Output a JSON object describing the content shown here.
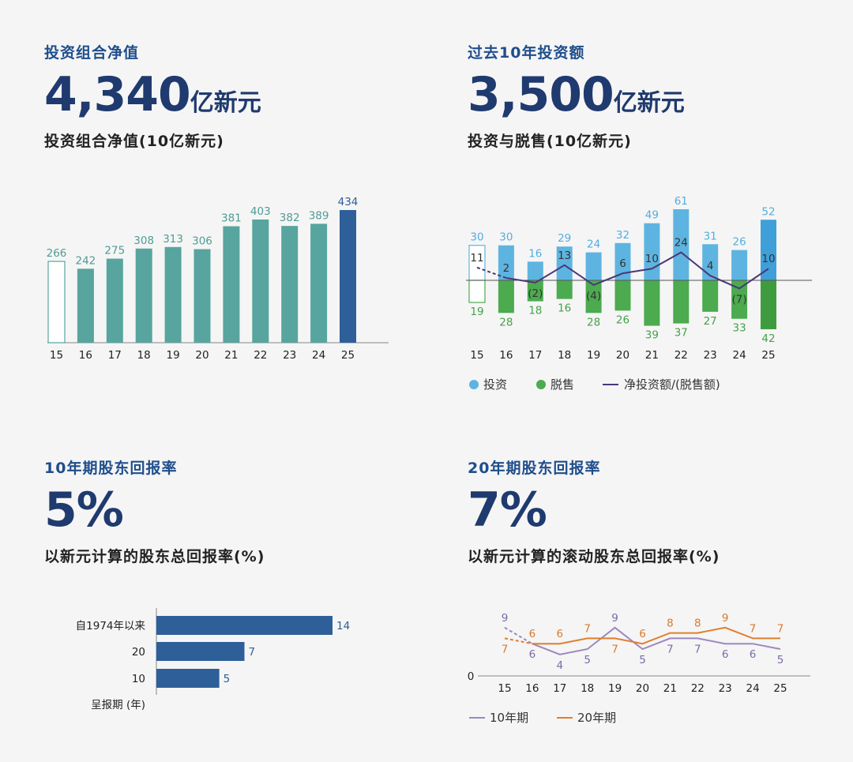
{
  "colors": {
    "heading_blue": "#1f4e8c",
    "value_navy": "#1f3a6e",
    "teal": "#57a59e",
    "teal_label": "#4f9c95",
    "dark_blue": "#2e5f99",
    "light_blue": "#5eb4e0",
    "light_blue_label": "#52aee0",
    "green": "#4caa4f",
    "green_label": "#45a14a",
    "purple": "#4a3878",
    "lavender": "#9c88c0",
    "orange": "#e07f2f",
    "axis": "#888888"
  },
  "panels": {
    "portfolio": {
      "label": "投资组合净值",
      "value": "4,340",
      "unit": "亿新元",
      "chart_title": "投资组合净值(10亿新元)"
    },
    "investment": {
      "label": "过去10年投资额",
      "value": "3,500",
      "unit": "亿新元",
      "chart_title": "投资与脱售(10亿新元)"
    },
    "tsr10": {
      "label": "10年期股东回报率",
      "value": "5%",
      "chart_title": "以新元计算的股东总回报率(%)"
    },
    "tsr20": {
      "label": "20年期股东回报率",
      "value": "7%",
      "chart_title": "以新元计算的滚动股东总回报率(%)"
    }
  },
  "chart_data": [
    {
      "id": "portfolio-chart",
      "type": "bar",
      "title": "投资组合净值(10亿新元)",
      "categories": [
        "15",
        "16",
        "17",
        "18",
        "19",
        "20",
        "21",
        "22",
        "23",
        "24",
        "25"
      ],
      "values": [
        266,
        242,
        275,
        308,
        313,
        306,
        381,
        403,
        382,
        389,
        434
      ],
      "value_labels": [
        "266",
        "242",
        "275",
        "308",
        "313",
        "306",
        "381",
        "403",
        "382",
        "389",
        "434"
      ],
      "ylim": [
        0,
        434
      ],
      "highlight_last": true,
      "outline_first": true
    },
    {
      "id": "investment-chart",
      "type": "bar",
      "title": "投资与脱售(10亿新元)",
      "categories": [
        "15",
        "16",
        "17",
        "18",
        "19",
        "20",
        "21",
        "22",
        "23",
        "24",
        "25"
      ],
      "series": [
        {
          "name": "投资",
          "values": [
            30,
            30,
            16,
            29,
            24,
            32,
            49,
            61,
            31,
            26,
            52
          ],
          "labels": [
            "30",
            "30",
            "16",
            "29",
            "24",
            "32",
            "49",
            "61",
            "31",
            "26",
            "52"
          ]
        },
        {
          "name": "脱售",
          "values": [
            19,
            28,
            18,
            16,
            28,
            26,
            39,
            37,
            27,
            33,
            42
          ],
          "labels": [
            "19",
            "28",
            "18",
            "16",
            "28",
            "26",
            "39",
            "37",
            "27",
            "33",
            "42"
          ]
        },
        {
          "name": "净投资额/(脱售额)",
          "type": "line",
          "values": [
            11,
            2,
            -2,
            13,
            -4,
            6,
            10,
            24,
            4,
            -7,
            10
          ],
          "labels": [
            "11",
            "2",
            "(2)",
            "13",
            "(4)",
            "6",
            "10",
            "24",
            "4",
            "(7)",
            "10"
          ]
        }
      ],
      "legend": [
        "投资",
        "脱售",
        "净投资额/(脱售额)"
      ],
      "legend_position": "bottom",
      "ylim": [
        -42,
        61
      ]
    },
    {
      "id": "tsr10-chart",
      "type": "bar",
      "orientation": "horizontal",
      "title": "以新元计算的股东总回报率(%)",
      "categories": [
        "自1974年以来",
        "20",
        "10"
      ],
      "values": [
        14,
        7,
        5
      ],
      "value_labels": [
        "14",
        "7",
        "5"
      ],
      "ylabel": "呈报期 (年)",
      "xlim": [
        0,
        14
      ]
    },
    {
      "id": "tsr20-chart",
      "type": "line",
      "title": "以新元计算的滚动股东总回报率(%)",
      "categories": [
        "15",
        "16",
        "17",
        "18",
        "19",
        "20",
        "21",
        "22",
        "23",
        "24",
        "25"
      ],
      "series": [
        {
          "name": "10年期",
          "values": [
            9,
            6,
            4,
            5,
            9,
            5,
            7,
            7,
            6,
            6,
            5
          ],
          "labels": [
            "9",
            "6",
            "4",
            "5",
            "9",
            "5",
            "7",
            "7",
            "6",
            "6",
            "5"
          ]
        },
        {
          "name": "20年期",
          "values": [
            7,
            6,
            6,
            7,
            7,
            6,
            8,
            8,
            9,
            7,
            7
          ],
          "labels": [
            "7",
            "6",
            "6",
            "7",
            "7",
            "6",
            "8",
            "8",
            "9",
            "7",
            "7"
          ]
        }
      ],
      "y_zero_label": "0",
      "legend": [
        "10年期",
        "20年期"
      ],
      "legend_position": "bottom",
      "ylim": [
        0,
        10
      ]
    }
  ]
}
